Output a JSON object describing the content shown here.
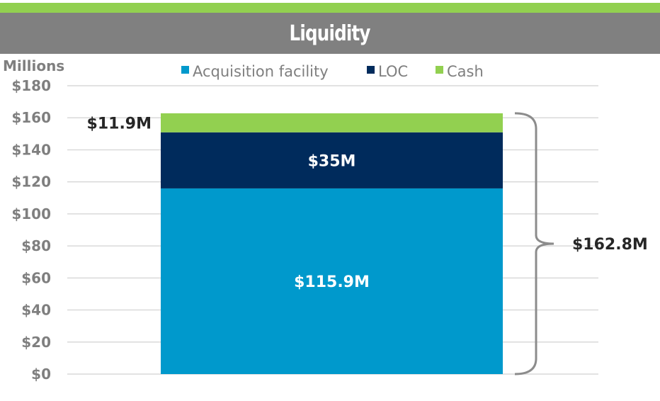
{
  "title": "Liquidity",
  "colors": {
    "top_strip": "#92d050",
    "title_bar": "#808080",
    "acquisition": "#0099cc",
    "loc": "#002b5c",
    "cash": "#92d050",
    "axis_text": "#7f7f7f",
    "gridline": "#d9d9d9",
    "brace": "#8c8c8c",
    "dark_label": "#262626"
  },
  "chart_data": {
    "type": "bar",
    "stacked": true,
    "title": "Liquidity",
    "ylabel": "Millions",
    "ylim": [
      0,
      180
    ],
    "yticks": [
      "$0",
      "$20",
      "$40",
      "$60",
      "$80",
      "$100",
      "$120",
      "$140",
      "$160",
      "$180"
    ],
    "grid": true,
    "legend_position": "top",
    "categories": [
      ""
    ],
    "series": [
      {
        "name": "Acquisition facility",
        "values": [
          115.9
        ],
        "label": "$115.9M",
        "color": "#0099cc",
        "label_color": "#ffffff",
        "label_pos": "inside"
      },
      {
        "name": "LOC",
        "values": [
          35
        ],
        "label": "$35M",
        "color": "#002b5c",
        "label_color": "#ffffff",
        "label_pos": "inside"
      },
      {
        "name": "Cash",
        "values": [
          11.9
        ],
        "label": "$11.9M",
        "color": "#92d050",
        "label_color": "#262626",
        "label_pos": "left"
      }
    ],
    "total": {
      "value": 162.8,
      "label": "$162.8M"
    }
  }
}
